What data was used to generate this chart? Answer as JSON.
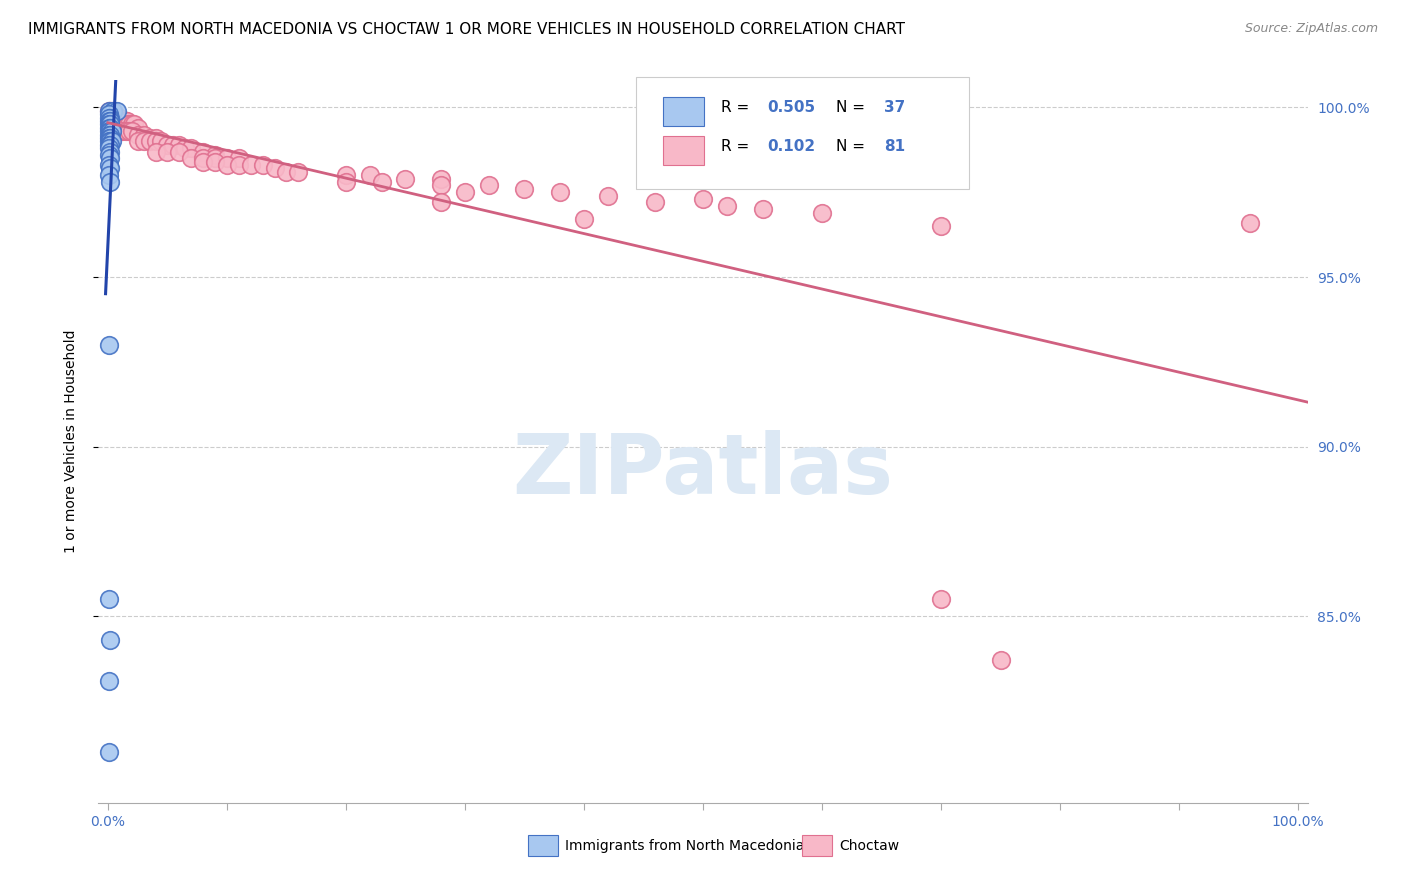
{
  "title": "IMMIGRANTS FROM NORTH MACEDONIA VS CHOCTAW 1 OR MORE VEHICLES IN HOUSEHOLD CORRELATION CHART",
  "source": "Source: ZipAtlas.com",
  "ylabel": "1 or more Vehicles in Household",
  "color_blue": "#a8c8f0",
  "color_pink": "#f8b8c8",
  "edge_blue": "#4472c4",
  "edge_pink": "#e07090",
  "line_blue": "#2244aa",
  "line_pink": "#d06080",
  "watermark_color": "#dce8f4",
  "tick_color": "#4472c4",
  "grid_color": "#cccccc",
  "blue_points": [
    [
      0.001,
      0.999
    ],
    [
      0.004,
      0.999
    ],
    [
      0.008,
      0.999
    ],
    [
      0.001,
      0.998
    ],
    [
      0.002,
      0.997
    ],
    [
      0.001,
      0.997
    ],
    [
      0.001,
      0.996
    ],
    [
      0.002,
      0.996
    ],
    [
      0.001,
      0.995
    ],
    [
      0.002,
      0.995
    ],
    [
      0.001,
      0.994
    ],
    [
      0.002,
      0.994
    ],
    [
      0.001,
      0.993
    ],
    [
      0.002,
      0.993
    ],
    [
      0.003,
      0.993
    ],
    [
      0.001,
      0.992
    ],
    [
      0.002,
      0.992
    ],
    [
      0.001,
      0.991
    ],
    [
      0.002,
      0.991
    ],
    [
      0.001,
      0.99
    ],
    [
      0.002,
      0.99
    ],
    [
      0.003,
      0.99
    ],
    [
      0.001,
      0.989
    ],
    [
      0.002,
      0.989
    ],
    [
      0.001,
      0.988
    ],
    [
      0.002,
      0.987
    ],
    [
      0.001,
      0.986
    ],
    [
      0.002,
      0.985
    ],
    [
      0.001,
      0.983
    ],
    [
      0.002,
      0.982
    ],
    [
      0.001,
      0.98
    ],
    [
      0.002,
      0.978
    ],
    [
      0.001,
      0.93
    ],
    [
      0.001,
      0.855
    ],
    [
      0.002,
      0.843
    ],
    [
      0.001,
      0.831
    ],
    [
      0.001,
      0.81
    ]
  ],
  "pink_points": [
    [
      0.001,
      0.999
    ],
    [
      0.002,
      0.999
    ],
    [
      0.003,
      0.999
    ],
    [
      0.004,
      0.998
    ],
    [
      0.005,
      0.998
    ],
    [
      0.006,
      0.998
    ],
    [
      0.007,
      0.997
    ],
    [
      0.008,
      0.997
    ],
    [
      0.009,
      0.997
    ],
    [
      0.01,
      0.997
    ],
    [
      0.011,
      0.996
    ],
    [
      0.012,
      0.996
    ],
    [
      0.013,
      0.996
    ],
    [
      0.015,
      0.996
    ],
    [
      0.016,
      0.996
    ],
    [
      0.017,
      0.995
    ],
    [
      0.018,
      0.995
    ],
    [
      0.02,
      0.995
    ],
    [
      0.022,
      0.995
    ],
    [
      0.025,
      0.994
    ],
    [
      0.01,
      0.993
    ],
    [
      0.012,
      0.993
    ],
    [
      0.015,
      0.993
    ],
    [
      0.018,
      0.993
    ],
    [
      0.02,
      0.993
    ],
    [
      0.025,
      0.992
    ],
    [
      0.03,
      0.992
    ],
    [
      0.035,
      0.991
    ],
    [
      0.04,
      0.991
    ],
    [
      0.025,
      0.99
    ],
    [
      0.03,
      0.99
    ],
    [
      0.035,
      0.99
    ],
    [
      0.04,
      0.99
    ],
    [
      0.045,
      0.99
    ],
    [
      0.05,
      0.989
    ],
    [
      0.055,
      0.989
    ],
    [
      0.06,
      0.989
    ],
    [
      0.065,
      0.988
    ],
    [
      0.07,
      0.988
    ],
    [
      0.04,
      0.987
    ],
    [
      0.05,
      0.987
    ],
    [
      0.06,
      0.987
    ],
    [
      0.08,
      0.987
    ],
    [
      0.09,
      0.986
    ],
    [
      0.07,
      0.985
    ],
    [
      0.08,
      0.985
    ],
    [
      0.09,
      0.985
    ],
    [
      0.1,
      0.985
    ],
    [
      0.11,
      0.985
    ],
    [
      0.08,
      0.984
    ],
    [
      0.09,
      0.984
    ],
    [
      0.1,
      0.983
    ],
    [
      0.11,
      0.983
    ],
    [
      0.12,
      0.983
    ],
    [
      0.13,
      0.983
    ],
    [
      0.14,
      0.982
    ],
    [
      0.15,
      0.981
    ],
    [
      0.16,
      0.981
    ],
    [
      0.2,
      0.98
    ],
    [
      0.22,
      0.98
    ],
    [
      0.25,
      0.979
    ],
    [
      0.28,
      0.979
    ],
    [
      0.2,
      0.978
    ],
    [
      0.23,
      0.978
    ],
    [
      0.28,
      0.977
    ],
    [
      0.32,
      0.977
    ],
    [
      0.35,
      0.976
    ],
    [
      0.3,
      0.975
    ],
    [
      0.38,
      0.975
    ],
    [
      0.42,
      0.974
    ],
    [
      0.5,
      0.973
    ],
    [
      0.28,
      0.972
    ],
    [
      0.46,
      0.972
    ],
    [
      0.52,
      0.971
    ],
    [
      0.55,
      0.97
    ],
    [
      0.6,
      0.969
    ],
    [
      0.4,
      0.967
    ],
    [
      0.7,
      0.965
    ],
    [
      0.96,
      0.966
    ],
    [
      0.7,
      0.855
    ],
    [
      0.75,
      0.837
    ]
  ]
}
